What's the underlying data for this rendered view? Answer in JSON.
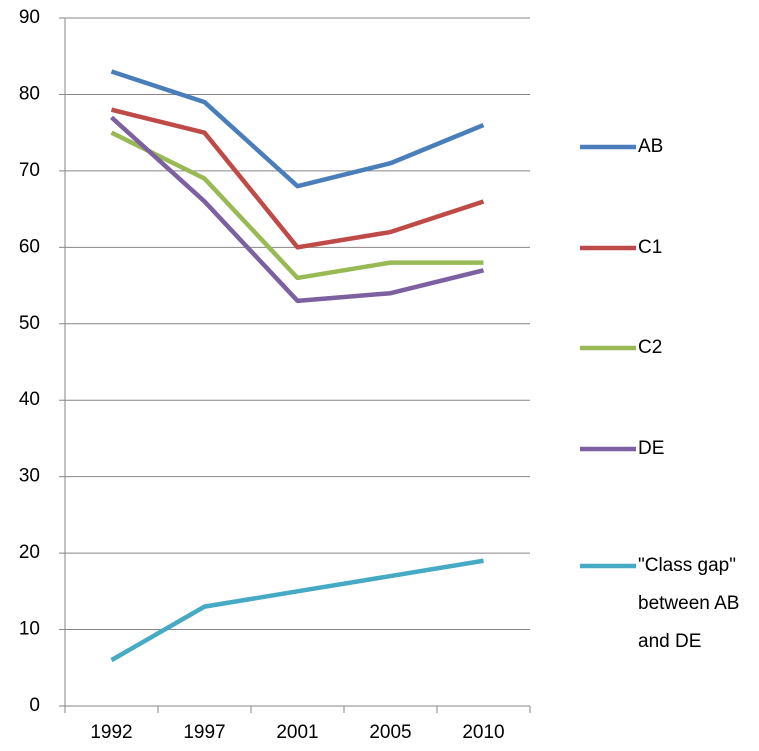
{
  "chart_data": {
    "type": "line",
    "categories": [
      "1992",
      "1997",
      "2001",
      "2005",
      "2010"
    ],
    "series": [
      {
        "name": "AB",
        "color": "#4a7ebb",
        "values": [
          83,
          79,
          68,
          71,
          76
        ]
      },
      {
        "name": "C1",
        "color": "#be4b48",
        "values": [
          78,
          75,
          60,
          62,
          66
        ]
      },
      {
        "name": "C2",
        "color": "#98b954",
        "values": [
          75,
          69,
          56,
          58,
          58
        ]
      },
      {
        "name": "DE",
        "color": "#7d60a0",
        "values": [
          77,
          66,
          53,
          54,
          57
        ]
      },
      {
        "name": "\"Class gap\" between AB and DE",
        "color": "#46aac5",
        "values": [
          6,
          13,
          15,
          17,
          19
        ]
      }
    ],
    "ylim": [
      0,
      90
    ],
    "yticks": [
      0,
      10,
      20,
      30,
      40,
      50,
      60,
      70,
      80,
      90
    ],
    "grid": true,
    "legend": "right"
  }
}
